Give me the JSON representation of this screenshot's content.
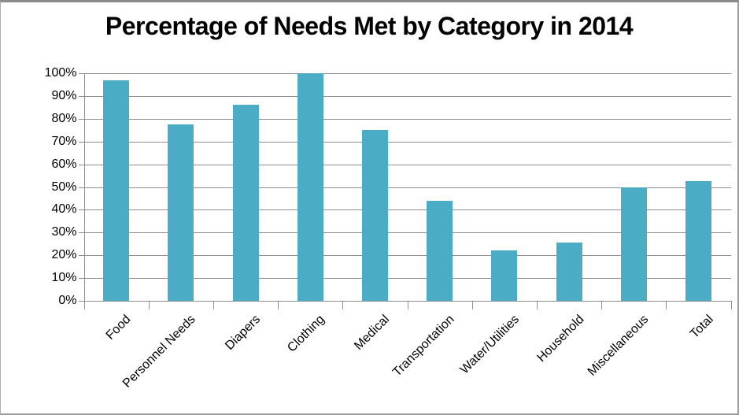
{
  "window": {
    "background": "#FFFFFF",
    "border_color": "#9B9B9B"
  },
  "chart_data": {
    "type": "bar",
    "title": "Percentage of Needs Met by Category in 2014",
    "categories": [
      "Food",
      "Personnel Needs",
      "Diapers",
      "Clothing",
      "Medical",
      "Transportation",
      "Water/Utilities",
      "Household",
      "Miscellaneous",
      "Total"
    ],
    "values": [
      97,
      77.5,
      86,
      100,
      75,
      44,
      22,
      25.5,
      50,
      52.5
    ],
    "xlabel": "",
    "ylabel": "",
    "ylim": [
      0,
      100
    ],
    "ytick_step": 10,
    "ytick_labels": [
      "0%",
      "10%",
      "20%",
      "30%",
      "40%",
      "50%",
      "60%",
      "70%",
      "80%",
      "90%",
      "100%"
    ],
    "grid": true,
    "legend_position": "none",
    "bar_color": "#4BACC6",
    "gridline_color": "#8E8E8E",
    "axis_color": "#8E8E8E",
    "text_color": "#000000"
  }
}
